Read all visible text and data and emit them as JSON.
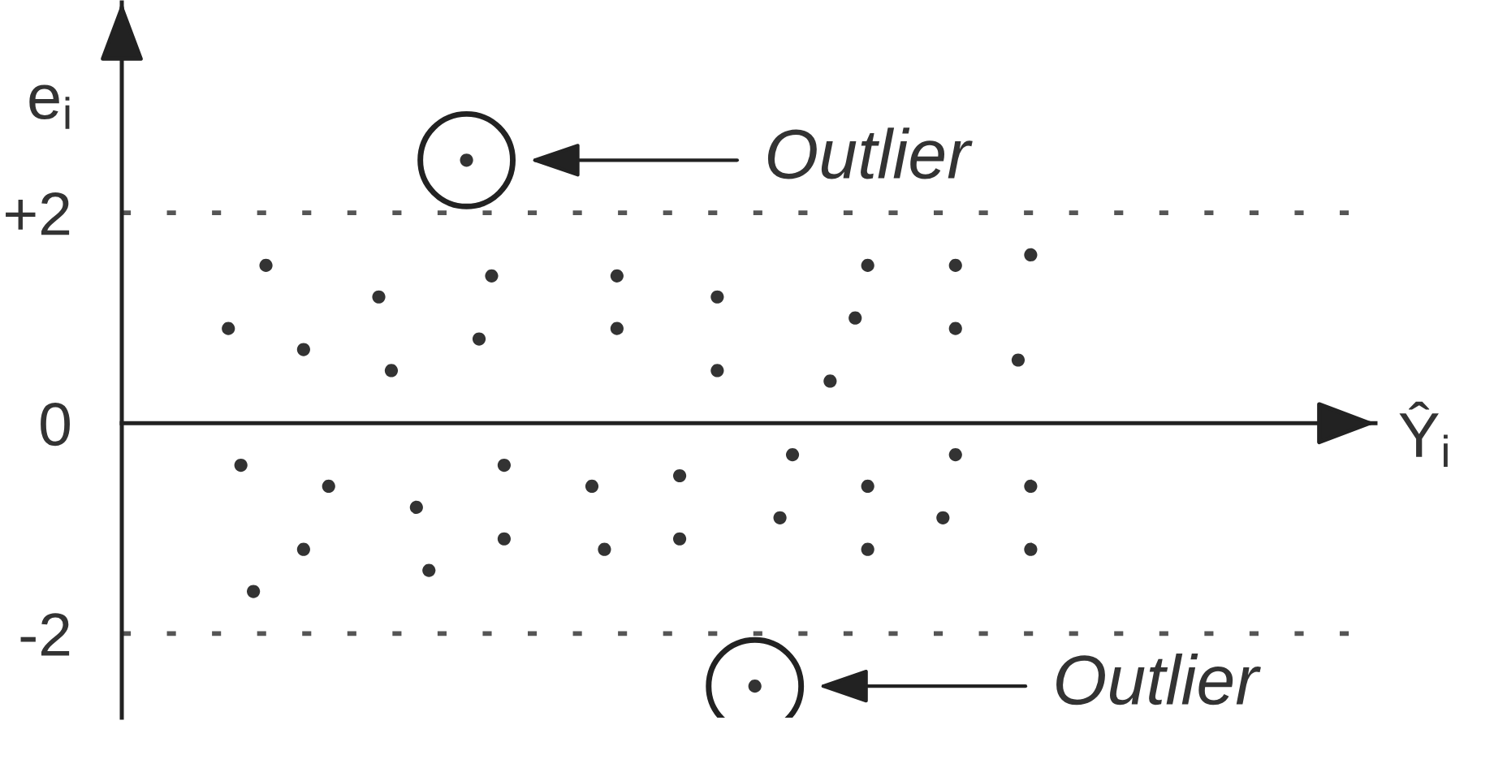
{
  "chart_data": {
    "type": "scatter",
    "xlabel": "Ŷ$_{i}$",
    "ylabel": "e$_{i}$",
    "categories": [
      null,
      null,
      null,
      null,
      null,
      null,
      null,
      null,
      null,
      null,
      null,
      null,
      null,
      null,
      null,
      null,
      null,
      null,
      null,
      null,
      null,
      null,
      null,
      null,
      null,
      null,
      null,
      null,
      null,
      null,
      null,
      null,
      null,
      null,
      null,
      null,
      null,
      null,
      null,
      null,
      null,
      null,
      null,
      null,
      null,
      null,
      null,
      null,
      null,
      null,
      null,
      null,
      null,
      null,
      null,
      null,
      null,
      null,
      null,
      null,
      null,
      null,
      null,
      null,
      null,
      null,
      null,
      null,
      null,
      null,
      null,
      null,
      null,
      null,
      null,
      null,
      null,
      null,
      null,
      null,
      null,
      null,
      null,
      null,
      null,
      null,
      null,
      null,
      null,
      null,
      null,
      null,
      null,
      null,
      null,
      null,
      null,
      null,
      null,
      null
    ],
    "ylim": [
      -2.8,
      4
    ],
    "yticks": [
      {
        "value": 2,
        "label": "+2"
      },
      0,
      -2
    ],
    "tick_labels": "y",
    "marker": "circle",
    "series": [
      {
        "color": "#333333",
        "values": [
          null,
          null,
          null,
          null,
          null,
          null,
          null,
          null,
          0.9,
          -0.4,
          -1.6,
          1.5,
          null,
          null,
          0.7,
          null,
          -0.6,
          null,
          null,
          null,
          1.2,
          0.5,
          null,
          -0.8,
          -1.4,
          null,
          null,
          2.5,
          0.8,
          1.4,
          -0.4,
          null,
          null,
          null,
          null,
          null,
          null,
          -0.6,
          -1.2,
          1.4,
          null,
          null,
          null,
          null,
          -0.5,
          null,
          null,
          1.2,
          null,
          null,
          -2.5,
          null,
          -0.9,
          -0.3,
          null,
          null,
          0.4,
          null,
          1.0,
          1.5,
          null,
          null,
          null,
          null,
          null,
          -0.9,
          1.5,
          null,
          null,
          null,
          null,
          0.6,
          1.6,
          null,
          null,
          null,
          null,
          null,
          null,
          null,
          null,
          null,
          null,
          null,
          null,
          null,
          null,
          null,
          null,
          null,
          null,
          null,
          null,
          null,
          null,
          null,
          null,
          null,
          null,
          null
        ]
      },
      {
        "color": "#333333",
        "values": [
          null,
          null,
          null,
          null,
          null,
          null,
          null,
          null,
          null,
          null,
          null,
          null,
          null,
          null,
          -1.2,
          null,
          null,
          null,
          null,
          null,
          null,
          null,
          null,
          null,
          null,
          null,
          null,
          null,
          null,
          null,
          -1.1,
          null,
          null,
          null,
          null,
          null,
          null,
          null,
          null,
          0.9,
          null,
          null,
          null,
          null,
          -1.1,
          null,
          null,
          0.5,
          null,
          null,
          null,
          null,
          null,
          null,
          null,
          null,
          null,
          null,
          null,
          -0.6,
          null,
          null,
          null,
          null,
          null,
          null,
          0.9,
          null,
          null,
          null,
          null,
          null,
          -1.2,
          null,
          null,
          null,
          null,
          null,
          null,
          null,
          null,
          null,
          null,
          null,
          null,
          null,
          null,
          null,
          null,
          null,
          null,
          null,
          null,
          null,
          null,
          null,
          null,
          null,
          null,
          null
        ]
      },
      {
        "color": "#333333",
        "values": [
          null,
          null,
          null,
          null,
          null,
          null,
          null,
          null,
          null,
          null,
          null,
          null,
          null,
          null,
          null,
          null,
          null,
          null,
          null,
          null,
          null,
          null,
          null,
          null,
          null,
          null,
          null,
          null,
          null,
          null,
          null,
          null,
          null,
          null,
          null,
          null,
          null,
          null,
          null,
          null,
          null,
          null,
          null,
          null,
          null,
          null,
          null,
          null,
          null,
          null,
          null,
          null,
          null,
          null,
          null,
          null,
          null,
          null,
          null,
          -1.2,
          null,
          null,
          null,
          null,
          null,
          null,
          -0.3,
          null,
          null,
          null,
          null,
          null,
          -0.6,
          null,
          null,
          null,
          null,
          null,
          null,
          null,
          null,
          null,
          null,
          null,
          null,
          null,
          null,
          null,
          null,
          null,
          null,
          null,
          null,
          null,
          null,
          null,
          null,
          null,
          null,
          null
        ]
      }
    ],
    "ref_lines": [
      {
        "axis": "y",
        "value": 2,
        "line_style": "dotted",
        "color": "#555555"
      },
      {
        "axis": "y",
        "value": -2,
        "line_style": "dotted",
        "color": "#555555"
      }
    ],
    "annotations": [
      "Outlier",
      "Outlier"
    ]
  }
}
